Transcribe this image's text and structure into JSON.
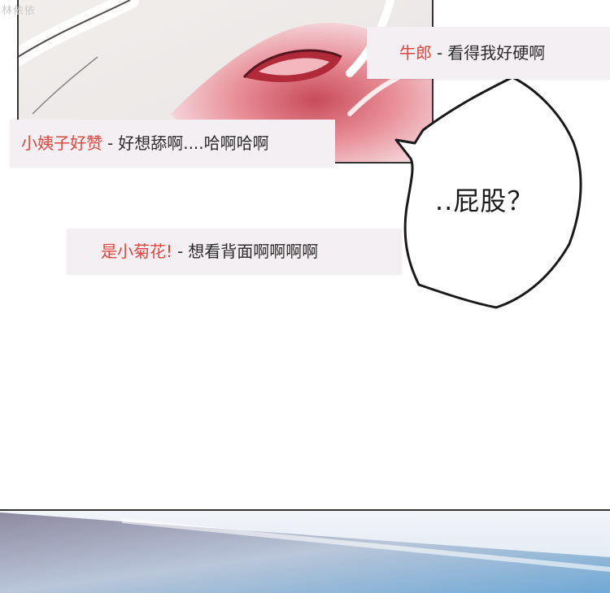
{
  "watermark": "林依依",
  "comments": [
    {
      "user": "牛郎",
      "separator": "-",
      "message": "看得我好硬啊"
    },
    {
      "user": "小姨子好赞",
      "separator": "-",
      "message": "好想舔啊....哈啊哈啊"
    },
    {
      "user": "是小菊花!",
      "separator": "-",
      "message": "想看背面啊啊啊啊"
    }
  ],
  "speech_bubble": {
    "text": "..屁股？"
  },
  "colors": {
    "username": "#e0463e",
    "comment_bg": "#f4eff2",
    "panel_border": "#333333"
  }
}
